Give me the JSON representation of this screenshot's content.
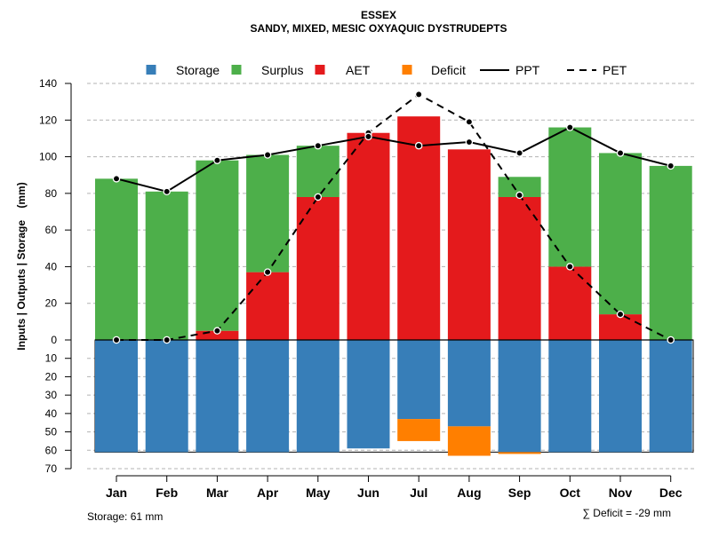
{
  "chart_data": {
    "type": "bar",
    "title": "ESSEX",
    "subtitle": "SANDY, MIXED, MESIC OXYAQUIC DYSTRUDEPTS",
    "ylabel": "Inputs | Outputs | Storage    (mm)",
    "xlabel": "",
    "categories": [
      "Jan",
      "Feb",
      "Mar",
      "Apr",
      "May",
      "Jun",
      "Jul",
      "Aug",
      "Sep",
      "Oct",
      "Nov",
      "Dec"
    ],
    "upper_ylim": [
      0,
      140
    ],
    "upper_ticks": [
      "0",
      "20",
      "40",
      "60",
      "80",
      "100",
      "120",
      "140"
    ],
    "lower_ylim": [
      0,
      70
    ],
    "lower_ticks": [
      "10",
      "20",
      "30",
      "40",
      "50",
      "60",
      "70"
    ],
    "grid": true,
    "legend_position": "top",
    "legend": [
      {
        "label": "Storage",
        "kind": "box",
        "color": "#377EB8"
      },
      {
        "label": "Surplus",
        "kind": "box",
        "color": "#4DAF4A"
      },
      {
        "label": "AET",
        "kind": "box",
        "color": "#E41A1C"
      },
      {
        "label": "Deficit",
        "kind": "box",
        "color": "#FF7F00"
      },
      {
        "label": "PPT",
        "kind": "solid-line",
        "color": "#000000"
      },
      {
        "label": "PET",
        "kind": "dashed-line",
        "color": "#000000"
      }
    ],
    "series": [
      {
        "name": "AET",
        "color": "#E41A1C",
        "values": [
          0,
          0,
          5,
          37,
          78,
          113,
          122,
          104,
          78,
          40,
          14,
          0
        ]
      },
      {
        "name": "Surplus",
        "color": "#4DAF4A",
        "values": [
          88,
          81,
          93,
          64,
          28,
          0,
          0,
          0,
          11,
          76,
          88,
          95
        ]
      },
      {
        "name": "Storage",
        "color": "#377EB8",
        "values": [
          61,
          61,
          61,
          61,
          61,
          59,
          43,
          47,
          61,
          61,
          61,
          61
        ]
      },
      {
        "name": "Deficit",
        "color": "#FF7F00",
        "values": [
          0,
          0,
          0,
          0,
          0,
          0,
          12,
          16,
          1,
          0,
          0,
          0
        ]
      },
      {
        "name": "PPT",
        "color": "#000000",
        "values": [
          88,
          81,
          98,
          101,
          106,
          111,
          106,
          108,
          102,
          116,
          102,
          95
        ]
      },
      {
        "name": "PET",
        "color": "#000000",
        "values": [
          0,
          0,
          5,
          37,
          78,
          113,
          134,
          119,
          79,
          40,
          14,
          0
        ]
      }
    ],
    "storage_capacity": 61,
    "footer_left": "Storage: 61 mm",
    "footer_right": "∑ Deficit = -29 mm"
  }
}
